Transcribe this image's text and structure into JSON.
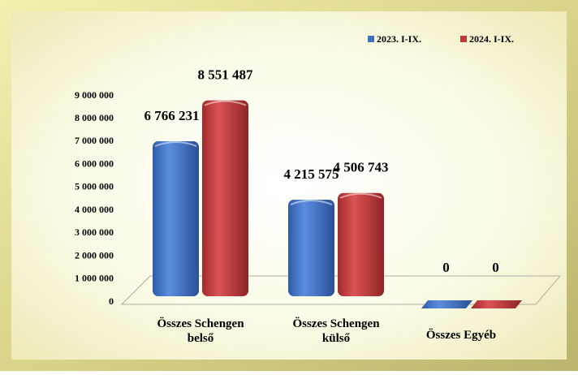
{
  "chart_data": {
    "type": "bar3d",
    "categories": [
      "Összes Schengen belső",
      "Összes Schengen külső",
      "Összes Egyéb"
    ],
    "series": [
      {
        "name": "2023. I-IX.",
        "color": "#3f6fc2",
        "values": [
          6766231,
          4215575,
          0
        ],
        "value_labels": [
          "6 766 231",
          "4 215 575",
          "0"
        ]
      },
      {
        "name": "2024. I-IX.",
        "color": "#c0393b",
        "values": [
          8551487,
          4506743,
          0
        ],
        "value_labels": [
          "8 551 487",
          "4 506 743",
          "0"
        ]
      }
    ],
    "ylim": [
      0,
      9000000
    ],
    "yticks": [
      {
        "value": 0,
        "label": "0"
      },
      {
        "value": 1000000,
        "label": "1 000 000"
      },
      {
        "value": 2000000,
        "label": "2 000 000"
      },
      {
        "value": 3000000,
        "label": "3 000 000"
      },
      {
        "value": 4000000,
        "label": "4 000 000"
      },
      {
        "value": 5000000,
        "label": "5 000 000"
      },
      {
        "value": 6000000,
        "label": "6 000 000"
      },
      {
        "value": 7000000,
        "label": "7 000 000"
      },
      {
        "value": 8000000,
        "label": "8 000 000"
      },
      {
        "value": 9000000,
        "label": "9 000 000"
      }
    ],
    "legend": "top-right"
  }
}
